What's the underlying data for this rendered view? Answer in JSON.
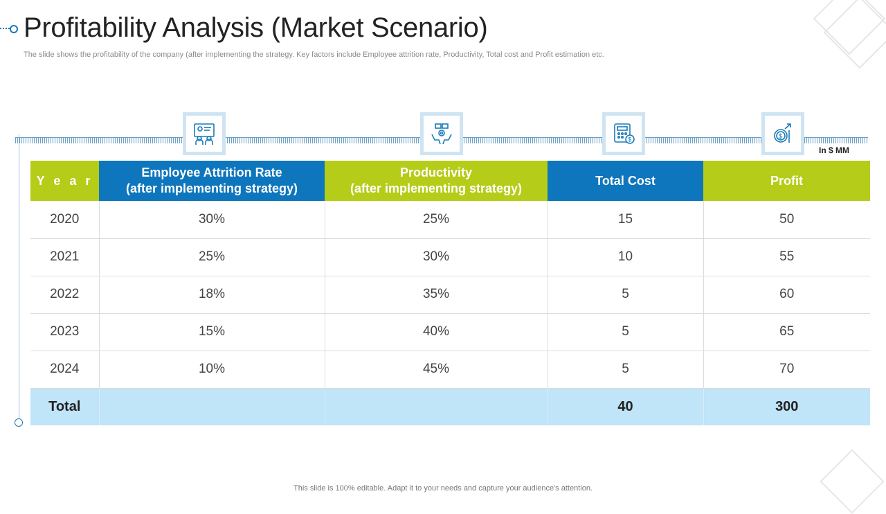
{
  "slide": {
    "title": "Profitability Analysis (Market Scenario)",
    "subtitle": "The slide shows the profitability of the company (after implementing the strategy. Key factors include Employee attrition rate, Productivity,  Total cost and Profit estimation etc.",
    "unit_note": "In $ MM",
    "footer": "This slide is 100% editable. Adapt it to your needs and capture your audience's attention."
  },
  "icons": [
    {
      "name": "presentation-board-icon"
    },
    {
      "name": "productivity-gears-icon"
    },
    {
      "name": "calculator-cost-icon"
    },
    {
      "name": "profit-growth-icon"
    }
  ],
  "table": {
    "headers": {
      "year": "Y e a r",
      "attrition_line1": "Employee Attrition Rate",
      "attrition_line2": "(after implementing strategy)",
      "productivity_line1": "Productivity",
      "productivity_line2": "(after implementing strategy)",
      "total_cost": "Total Cost",
      "profit": "Profit"
    },
    "rows": [
      {
        "year": "2020",
        "attrition": "30%",
        "productivity": "25%",
        "total_cost": "15",
        "profit": "50"
      },
      {
        "year": "2021",
        "attrition": "25%",
        "productivity": "30%",
        "total_cost": "10",
        "profit": "55"
      },
      {
        "year": "2022",
        "attrition": "18%",
        "productivity": "35%",
        "total_cost": "5",
        "profit": "60"
      },
      {
        "year": "2023",
        "attrition": "15%",
        "productivity": "40%",
        "total_cost": "5",
        "profit": "65"
      },
      {
        "year": "2024",
        "attrition": "10%",
        "productivity": "45%",
        "total_cost": "5",
        "profit": "70"
      }
    ],
    "total": {
      "label": "Total",
      "attrition": "",
      "productivity": "",
      "total_cost": "40",
      "profit": "300"
    }
  },
  "colors": {
    "header_green": "#b5cc18",
    "header_blue": "#0d76bd",
    "total_row": "#c0e4f8",
    "accent_line": "#6a9fc6"
  }
}
